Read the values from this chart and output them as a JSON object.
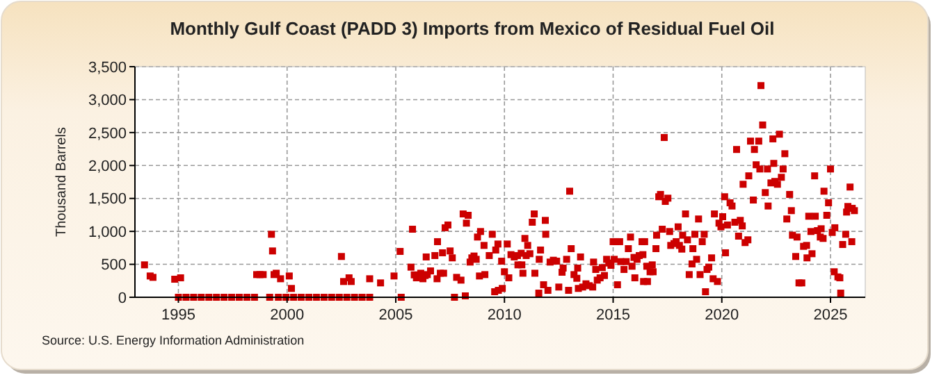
{
  "chart_data": {
    "type": "scatter",
    "title": "Monthly Gulf Coast (PADD 3) Imports from Mexico of Residual Fuel Oil",
    "ylabel": "Thousand Barrels",
    "annotations": [
      "Source: U.S. Energy Information Administration"
    ],
    "marker": "square",
    "grid": true,
    "xlim": [
      1993,
      2026.6
    ],
    "xticks": [
      1995,
      2000,
      2005,
      2010,
      2015,
      2020,
      2025
    ],
    "ylim": [
      0,
      3500
    ],
    "yticks": [
      0,
      {
        "value": 500,
        "label": "500"
      },
      {
        "value": 1000,
        "label": "1,000"
      },
      {
        "value": 1500,
        "label": "1,500"
      },
      {
        "value": 2000,
        "label": "2,000"
      },
      {
        "value": 2500,
        "label": "2,500"
      },
      {
        "value": 3000,
        "label": "3,000"
      },
      {
        "value": 3500,
        "label": "3,500"
      }
    ],
    "series": [
      {
        "color": "#cc0000",
        "x": [
          1993.44,
          1993.7,
          1993.83,
          1994.83,
          1995.1,
          1998.6,
          1998.75,
          1998.9,
          1999.28,
          1999.33,
          1999.4,
          1999.5,
          1999.7,
          2000.1,
          2000.2,
          2002.5,
          2002.6,
          2002.85,
          2002.95,
          2003.8,
          2004.3,
          2004.92,
          2005.2,
          2005.7,
          2005.77,
          2005.85,
          2005.95,
          2006.15,
          2006.25,
          2006.35,
          2006.45,
          2006.4,
          2006.6,
          2006.8,
          2006.9,
          2006.92,
          2007.05,
          2007.2,
          2007.15,
          2007.27,
          2007.4,
          2007.5,
          2007.6,
          2007.8,
          2008.0,
          2008.1,
          2008.33,
          2008.25,
          2008.2,
          2008.5,
          2008.6,
          2008.7,
          2008.42,
          2008.76,
          2008.9,
          2008.85,
          2009.06,
          2009.1,
          2009.3,
          2009.44,
          2009.55,
          2009.72,
          2009.9,
          2009.6,
          2009.7,
          2009.87,
          2010.0,
          2010.13,
          2010.2,
          2010.3,
          2010.45,
          2010.6,
          2010.77,
          2010.62,
          2010.8,
          2010.85,
          2010.94,
          2011.07,
          2011.0,
          2011.17,
          2011.28,
          2011.37,
          2011.4,
          2011.58,
          2011.66,
          2011.6,
          2011.8,
          2011.88,
          2011.9,
          2012.0,
          2012.1,
          2012.25,
          2012.4,
          2012.5,
          2012.65,
          2012.7,
          2012.86,
          2012.95,
          2013.0,
          2013.07,
          2013.2,
          2013.33,
          2013.37,
          2013.5,
          2013.4,
          2013.6,
          2013.75,
          2013.9,
          2014.06,
          2014.1,
          2014.2,
          2014.27,
          2014.4,
          2014.5,
          2014.6,
          2014.7,
          2014.8,
          2014.9,
          2015.0,
          2015.13,
          2015.3,
          2015.05,
          2015.2,
          2015.35,
          2015.5,
          2015.6,
          2015.7,
          2015.8,
          2015.87,
          2015.96,
          2016.0,
          2016.1,
          2016.2,
          2016.33,
          2016.4,
          2016.37,
          2016.45,
          2016.55,
          2016.8,
          2016.58,
          2016.7,
          2016.84,
          2016.97,
          2017.0,
          2017.1,
          2017.18,
          2017.26,
          2017.35,
          2017.4,
          2017.52,
          2017.6,
          2017.65,
          2017.8,
          2017.9,
          2018.05,
          2018.16,
          2017.99,
          2018.2,
          2018.33,
          2018.42,
          2018.5,
          2018.63,
          2018.67,
          2018.76,
          2018.84,
          2018.93,
          2019.0,
          2019.1,
          2019.19,
          2019.25,
          2019.32,
          2019.4,
          2019.53,
          2019.6,
          2019.8,
          2019.66,
          2019.87,
          2019.96,
          2020.04,
          2020.13,
          2020.17,
          2020.26,
          2020.38,
          2020.47,
          2020.6,
          2020.68,
          2020.77,
          2020.85,
          2020.94,
          2020.98,
          2021.07,
          2021.2,
          2021.24,
          2021.32,
          2021.45,
          2021.5,
          2021.58,
          2021.7,
          2021.8,
          2021.75,
          2021.88,
          2022.0,
          2022.1,
          2022.13,
          2022.26,
          2022.44,
          2022.35,
          2022.39,
          2022.56,
          2022.65,
          2022.74,
          2022.82,
          2022.9,
          2022.99,
          2023.12,
          2023.2,
          2023.25,
          2023.46,
          2023.4,
          2023.55,
          2023.68,
          2023.76,
          2023.9,
          2023.92,
          2024.0,
          2024.3,
          2024.1,
          2024.15,
          2024.27,
          2024.4,
          2024.57,
          2024.53,
          2024.66,
          2024.7,
          2024.83,
          2024.91,
          2025.0,
          2025.08,
          2025.17,
          2025.2,
          2025.34,
          2025.43,
          2025.47,
          2025.56,
          2025.7,
          2025.74,
          2025.8,
          2025.9,
          2025.98,
          2026.0,
          2026.1,
          1995.0,
          1995.35,
          1995.7,
          1996.05,
          1996.4,
          1996.75,
          1997.1,
          1997.45,
          1997.8,
          1998.15,
          1998.5,
          1999.2,
          1999.6,
          1999.95,
          2000.3,
          2000.65,
          2001.0,
          2001.35,
          2001.7,
          2002.05,
          2002.4,
          2002.75,
          2003.1,
          2003.45,
          2003.8,
          2005.25,
          2007.7
        ],
        "values": [
          492,
          323,
          302,
          274,
          295,
          344,
          344,
          344,
          956,
          703,
          344,
          365,
          281,
          323,
          134,
          619,
          239,
          295,
          239,
          281,
          218,
          323,
          696,
          457,
          1033,
          340,
          295,
          365,
          281,
          330,
          344,
          612,
          400,
          633,
          281,
          844,
          365,
          365,
          675,
          1055,
          1097,
          703,
          598,
          302,
          260,
          1265,
          1244,
          1125,
          21,
          598,
          626,
          576,
          534,
          914,
          998,
          323,
          787,
          344,
          633,
          956,
          84,
          105,
          134,
          717,
          808,
          548,
          387,
          808,
          295,
          647,
          612,
          633,
          668,
          492,
          492,
          365,
          893,
          787,
          633,
          661,
          1139,
          1265,
          365,
          63,
          717,
          576,
          190,
          1167,
          956,
          105,
          534,
          562,
          548,
          155,
          380,
          443,
          576,
          105,
          1610,
          738,
          344,
          288,
          443,
          612,
          134,
          155,
          204,
          176,
          155,
          534,
          422,
          260,
          295,
          450,
          330,
          576,
          520,
          485,
          844,
          844,
          844,
          576,
          190,
          541,
          422,
          541,
          738,
          914,
          471,
          605,
          295,
          576,
          633,
          844,
          239,
          647,
          844,
          471,
          492,
          239,
          387,
          387,
          738,
          942,
          1526,
          1561,
          1033,
          2425,
          1455,
          1504,
          998,
          787,
          815,
          844,
          787,
          731,
          1069,
          942,
          1265,
          872,
          344,
          506,
          738,
          956,
          576,
          1188,
          344,
          844,
          956,
          84,
          422,
          457,
          598,
          281,
          239,
          1265,
          1125,
          1069,
          1223,
          1526,
          675,
          1097,
          1434,
          1385,
          1139,
          2243,
          928,
          1167,
          1083,
          1715,
          830,
          872,
          1843,
          2370,
          1476,
          2243,
          2011,
          2370,
          3213,
          1947,
          2615,
          1589,
          1947,
          1385,
          1736,
          1758,
          2404,
          2032,
          1715,
          2475,
          1821,
          1947,
          2179,
          1188,
          1561,
          1315,
          942,
          914,
          619,
          218,
          218,
          773,
          787,
          598,
          1230,
          1230,
          998,
          661,
          1843,
          1012,
          1040,
          914,
          893,
          1610,
          1244,
          1434,
          1947,
          984,
          387,
          1055,
          309,
          295,
          63,
          801,
          956,
          1293,
          1378,
          1673,
          844,
          1350,
          1315,
          0,
          0,
          0,
          0,
          0,
          0,
          0,
          0,
          0,
          0,
          0,
          0,
          0,
          0,
          0,
          0,
          0,
          0,
          0,
          0,
          0,
          0,
          0,
          0,
          0,
          0,
          0
        ]
      }
    ]
  }
}
